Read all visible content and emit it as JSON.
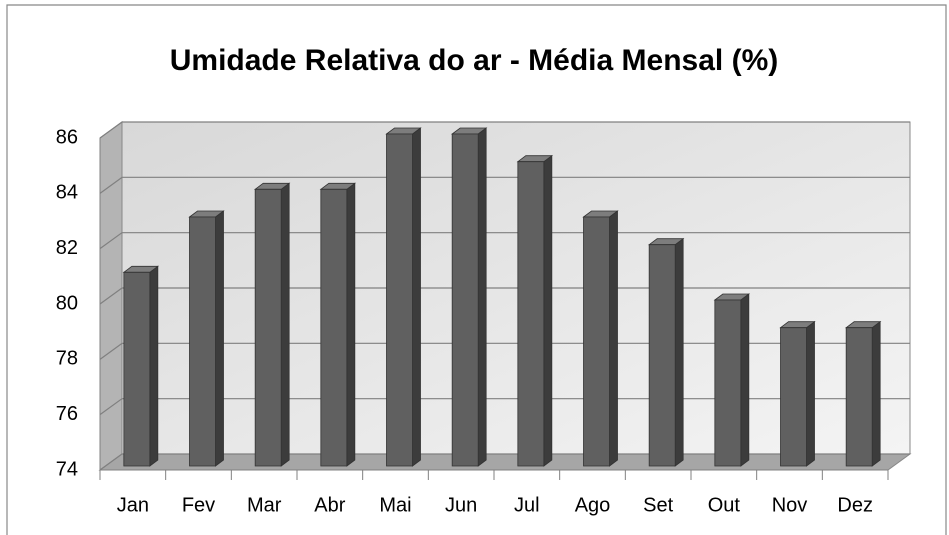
{
  "chart_data": {
    "type": "bar3d",
    "title": "Umidade Relativa do ar - Média Mensal (%)",
    "categories": [
      "Jan",
      "Fev",
      "Mar",
      "Abr",
      "Mai",
      "Jun",
      "Jul",
      "Ago",
      "Set",
      "Out",
      "Nov",
      "Dez"
    ],
    "values": [
      81,
      83,
      84,
      84,
      86,
      86,
      85,
      83,
      82,
      80,
      79,
      79
    ],
    "color": "#606060",
    "ylim": [
      74,
      86
    ],
    "yticks": [
      74,
      76,
      78,
      80,
      82,
      84,
      86
    ],
    "grid": true
  }
}
